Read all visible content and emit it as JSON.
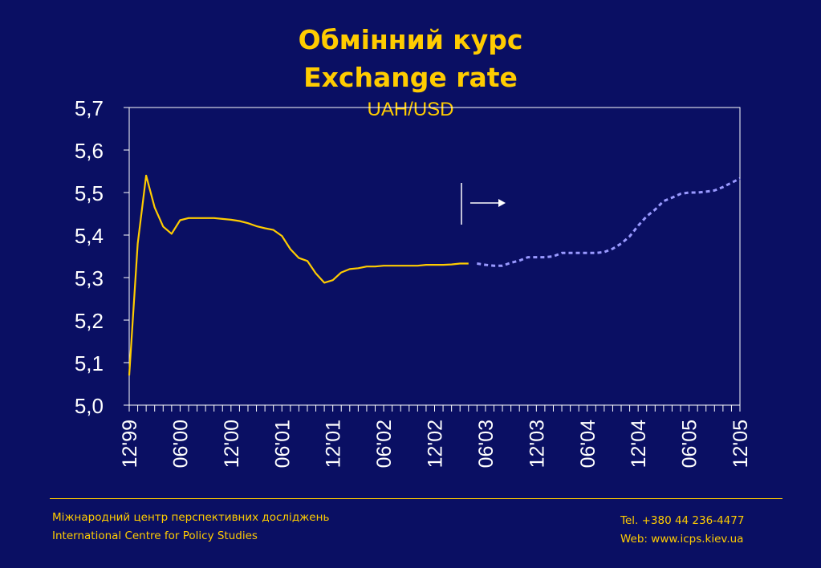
{
  "slide": {
    "title_ua": "Обмінний курс",
    "title_en": "Exchange rate",
    "subtitle": "UAH/USD"
  },
  "footer": {
    "org_ua": "Міжнародний центр перспективних досліджень",
    "org_en": "International Centre for Policy Studies",
    "tel": "Tel. +380 44 236-4477",
    "web": "Web: www.icps.kiev.ua"
  },
  "colors": {
    "background": "#0a0f63",
    "accent": "#ffcc00",
    "axis": "#ffffff",
    "forecast": "#9999ff"
  },
  "chart_data": {
    "type": "line",
    "title": "UAH/USD",
    "ylim": [
      5.0,
      5.7
    ],
    "y_ticks": [
      "5,0",
      "5,1",
      "5,2",
      "5,3",
      "5,4",
      "5,5",
      "5,6",
      "5,7"
    ],
    "x_tick_labels": [
      "12'99",
      "06'00",
      "12'00",
      "06'01",
      "12'01",
      "06'02",
      "12'02",
      "06'03",
      "12'03",
      "06'04",
      "12'04",
      "06'05",
      "12'05"
    ],
    "grid": false,
    "series": [
      {
        "style": "solid",
        "color": "#ffcc00",
        "x": [
          0,
          1,
          2,
          3,
          4,
          5,
          6,
          7,
          8,
          9,
          10,
          11,
          12,
          13,
          14,
          15,
          16,
          17,
          18,
          19,
          20,
          21,
          22,
          23,
          24,
          25,
          26,
          27,
          28,
          29,
          30,
          31,
          32,
          33,
          34,
          35,
          36,
          37,
          38,
          39,
          40
        ],
        "values": [
          5.07,
          5.38,
          5.54,
          5.465,
          5.42,
          5.403,
          5.435,
          5.44,
          5.44,
          5.44,
          5.44,
          5.438,
          5.436,
          5.433,
          5.428,
          5.421,
          5.416,
          5.412,
          5.398,
          5.367,
          5.346,
          5.339,
          5.31,
          5.288,
          5.294,
          5.312,
          5.32,
          5.322,
          5.326,
          5.326,
          5.328,
          5.328,
          5.328,
          5.328,
          5.328,
          5.33,
          5.33,
          5.33,
          5.331,
          5.333,
          5.333
        ]
      },
      {
        "style": "dashed",
        "color": "#9999ff",
        "x": [
          41,
          42,
          43,
          44,
          45,
          46,
          47,
          48,
          49,
          50,
          51,
          52,
          53,
          54,
          55,
          56,
          57,
          58,
          59,
          60,
          61,
          62,
          63,
          64,
          65,
          66,
          67,
          68,
          69,
          70,
          71,
          72
        ],
        "values": [
          5.333,
          5.33,
          5.328,
          5.328,
          5.335,
          5.34,
          5.348,
          5.348,
          5.348,
          5.35,
          5.358,
          5.358,
          5.358,
          5.358,
          5.358,
          5.36,
          5.368,
          5.38,
          5.397,
          5.422,
          5.444,
          5.46,
          5.48,
          5.488,
          5.497,
          5.5,
          5.5,
          5.502,
          5.505,
          5.513,
          5.523,
          5.533
        ]
      }
    ]
  }
}
